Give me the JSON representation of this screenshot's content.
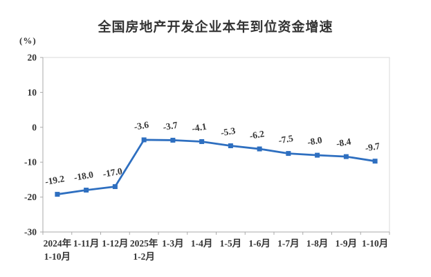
{
  "chart_data": {
    "type": "line",
    "title": "全国房地产开发企业本年到位资金增速",
    "unit_label": "(%)",
    "categories": [
      [
        "2024年",
        "1-10月"
      ],
      [
        "1-11月"
      ],
      [
        "1-12月"
      ],
      [
        "2025年",
        "1-2月"
      ],
      [
        "1-3月"
      ],
      [
        "1-4月"
      ],
      [
        "1-5月"
      ],
      [
        "1-6月"
      ],
      [
        "1-7月"
      ],
      [
        "1-8月"
      ],
      [
        "1-9月"
      ],
      [
        "1-10月"
      ]
    ],
    "values": [
      -19.2,
      -18.0,
      -17.0,
      -3.6,
      -3.7,
      -4.1,
      -5.3,
      -6.2,
      -7.5,
      -8.0,
      -8.4,
      -9.7
    ],
    "data_labels": [
      "-19.2",
      "-18.0",
      "-17.0",
      "-3.6",
      "-3.7",
      "-4.1",
      "-5.3",
      "-6.2",
      "-7.5",
      "-8.0",
      "-8.4",
      "-9.7"
    ],
    "y_ticks": [
      20,
      10,
      0,
      -10,
      -20,
      -30
    ],
    "ylim": [
      -30,
      20
    ],
    "grid": false,
    "legend": "none",
    "marker": "square",
    "line_color": "#2E6FC0",
    "axis_color": "#A9A9A9",
    "border_color": "#D9D9D9",
    "text_color": "#333333"
  }
}
